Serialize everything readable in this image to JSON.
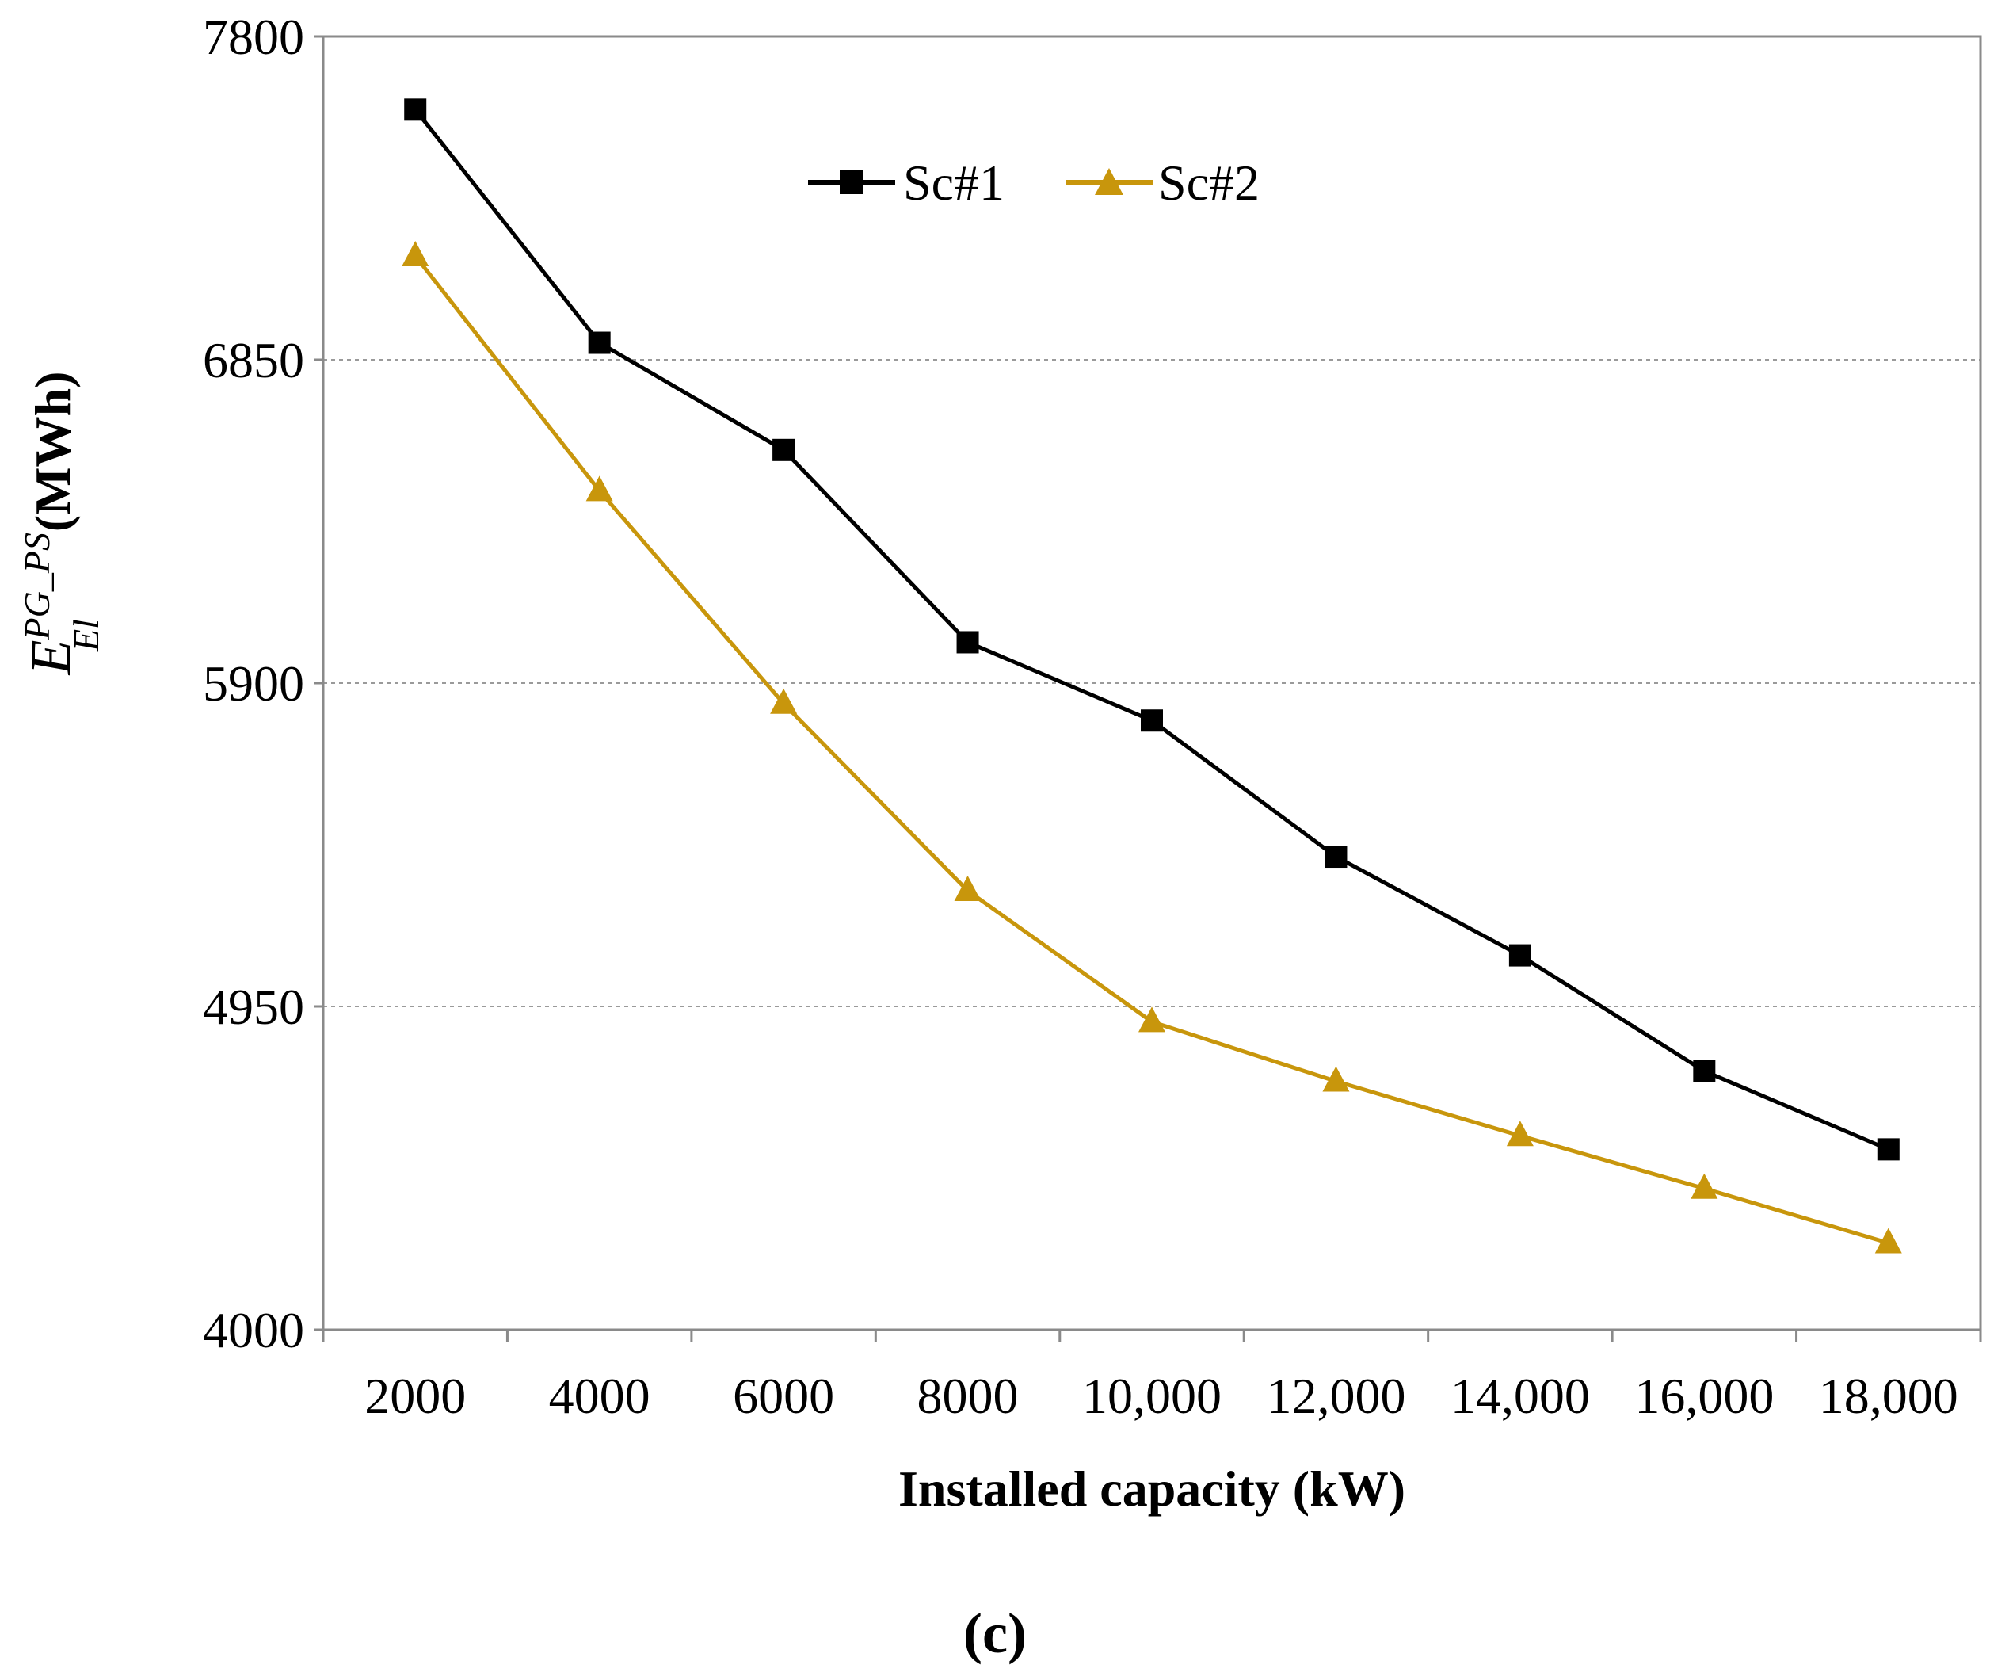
{
  "chart_data": {
    "type": "line",
    "x": [
      "2000",
      "4000",
      "6000",
      "8000",
      "10,000",
      "12,000",
      "14,000",
      "16,000",
      "18,000"
    ],
    "series": [
      {
        "name": "Sc#1",
        "marker": "square",
        "color": "#000000",
        "values": [
          7585,
          6900,
          6585,
          6020,
          5790,
          5390,
          5100,
          4760,
          4530
        ]
      },
      {
        "name": "Sc#2",
        "marker": "triangle",
        "color": "#C8960C",
        "values": [
          7155,
          6465,
          5840,
          5290,
          4905,
          4730,
          4570,
          4415,
          4255
        ]
      }
    ],
    "xlabel": "Installed capacity (kW)",
    "ylabel": {
      "base": "E",
      "sup": "PG_PS",
      "sub": "El",
      "unit": "(MWh)"
    },
    "yticks": [
      4000,
      4950,
      5900,
      6850,
      7800
    ],
    "ylim": [
      4000,
      7800
    ],
    "grid": "horizontal-dashed",
    "legend_position": "top-center",
    "caption": "(c)"
  }
}
